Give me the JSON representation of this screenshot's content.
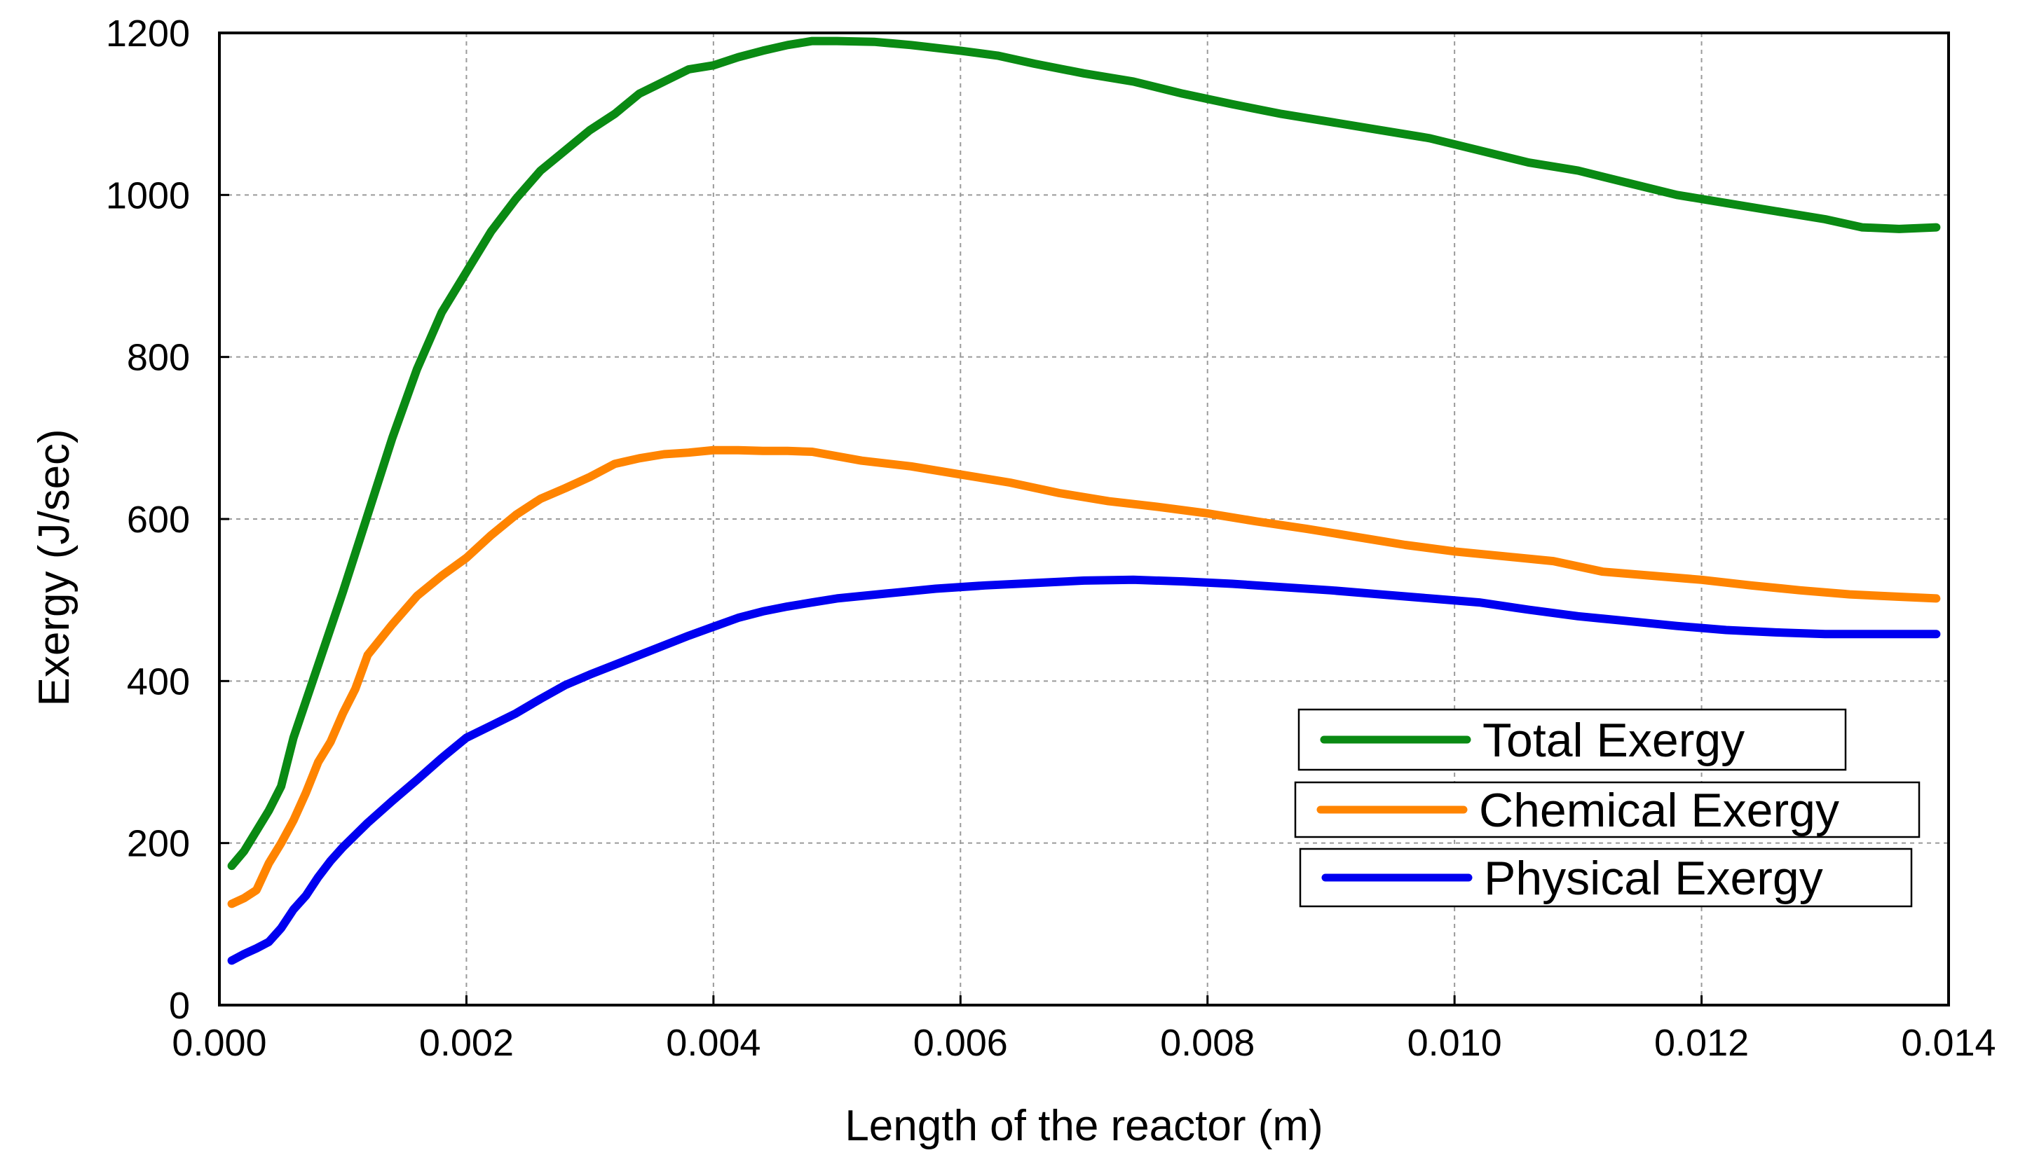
{
  "chart_data": {
    "type": "line",
    "title": "",
    "xlabel": "Length of the reactor (m)",
    "ylabel": "Exergy (J/sec)",
    "xlim": [
      0.0,
      0.014
    ],
    "ylim": [
      0,
      1200
    ],
    "x_ticks": [
      "0.000",
      "0.002",
      "0.004",
      "0.006",
      "0.008",
      "0.010",
      "0.012",
      "0.014"
    ],
    "y_ticks": [
      "0",
      "200",
      "400",
      "600",
      "800",
      "1000",
      "1200"
    ],
    "grid": true,
    "legend_position": "center-right",
    "series": [
      {
        "name": "Total Exergy",
        "color": "#0a8a13",
        "x": [
          0.0001,
          0.0002,
          0.0003,
          0.0004,
          0.0005,
          0.0006,
          0.0008,
          0.001,
          0.0012,
          0.0014,
          0.0016,
          0.0018,
          0.002,
          0.0022,
          0.0024,
          0.0026,
          0.0028,
          0.003,
          0.0032,
          0.0034,
          0.0036,
          0.0038,
          0.004,
          0.0042,
          0.0044,
          0.0046,
          0.0048,
          0.005,
          0.0053,
          0.0056,
          0.006,
          0.0063,
          0.0066,
          0.007,
          0.0074,
          0.0078,
          0.0082,
          0.0086,
          0.009,
          0.0094,
          0.0098,
          0.0102,
          0.0106,
          0.011,
          0.0114,
          0.0118,
          0.0122,
          0.0126,
          0.013,
          0.0133,
          0.0136,
          0.0139
        ],
        "values": [
          172,
          190,
          215,
          240,
          270,
          330,
          420,
          510,
          605,
          700,
          785,
          855,
          905,
          955,
          995,
          1030,
          1055,
          1080,
          1100,
          1125,
          1140,
          1155,
          1160,
          1170,
          1178,
          1185,
          1190,
          1190,
          1189,
          1185,
          1178,
          1172,
          1162,
          1150,
          1140,
          1125,
          1112,
          1100,
          1090,
          1080,
          1070,
          1055,
          1040,
          1030,
          1015,
          1000,
          990,
          980,
          970,
          960,
          958,
          960
        ]
      },
      {
        "name": "Chemical Exergy",
        "color": "#ff8400",
        "x": [
          0.0001,
          0.0002,
          0.0003,
          0.0004,
          0.0005,
          0.0006,
          0.0007,
          0.0008,
          0.0009,
          0.001,
          0.0011,
          0.0012,
          0.0014,
          0.0016,
          0.0018,
          0.002,
          0.0022,
          0.0024,
          0.0026,
          0.0028,
          0.003,
          0.0032,
          0.0034,
          0.0036,
          0.0038,
          0.004,
          0.0042,
          0.0044,
          0.0046,
          0.0048,
          0.0052,
          0.0056,
          0.006,
          0.0064,
          0.0068,
          0.0072,
          0.0076,
          0.008,
          0.0084,
          0.0088,
          0.0092,
          0.0096,
          0.01,
          0.0104,
          0.0108,
          0.0112,
          0.0116,
          0.012,
          0.0124,
          0.0128,
          0.0132,
          0.0136,
          0.0139
        ],
        "values": [
          125,
          132,
          142,
          175,
          200,
          228,
          262,
          300,
          325,
          360,
          390,
          432,
          470,
          505,
          530,
          552,
          580,
          605,
          625,
          638,
          652,
          668,
          675,
          680,
          682,
          685,
          685,
          684,
          684,
          683,
          672,
          665,
          655,
          645,
          632,
          622,
          615,
          607,
          597,
          588,
          578,
          568,
          560,
          554,
          548,
          535,
          530,
          525,
          518,
          512,
          507,
          504,
          502
        ]
      },
      {
        "name": "Physical Exergy",
        "color": "#0000f0",
        "x": [
          0.0001,
          0.0002,
          0.0003,
          0.0004,
          0.0005,
          0.0006,
          0.0007,
          0.0008,
          0.0009,
          0.001,
          0.0012,
          0.0014,
          0.0016,
          0.0018,
          0.002,
          0.0022,
          0.0024,
          0.0026,
          0.0028,
          0.003,
          0.0032,
          0.0034,
          0.0036,
          0.0038,
          0.004,
          0.0042,
          0.0044,
          0.0046,
          0.0048,
          0.005,
          0.0054,
          0.0058,
          0.0062,
          0.0066,
          0.007,
          0.0074,
          0.0078,
          0.0082,
          0.0086,
          0.009,
          0.0094,
          0.0098,
          0.0102,
          0.0106,
          0.011,
          0.0114,
          0.0118,
          0.0122,
          0.0126,
          0.013,
          0.0134,
          0.0139
        ],
        "values": [
          55,
          63,
          70,
          78,
          95,
          118,
          135,
          158,
          178,
          195,
          225,
          252,
          278,
          305,
          330,
          345,
          360,
          378,
          395,
          408,
          420,
          432,
          444,
          456,
          467,
          478,
          486,
          492,
          497,
          502,
          508,
          514,
          518,
          521,
          524,
          525,
          523,
          520,
          516,
          512,
          507,
          502,
          497,
          488,
          480,
          474,
          468,
          463,
          460,
          458,
          458,
          458
        ]
      }
    ]
  }
}
